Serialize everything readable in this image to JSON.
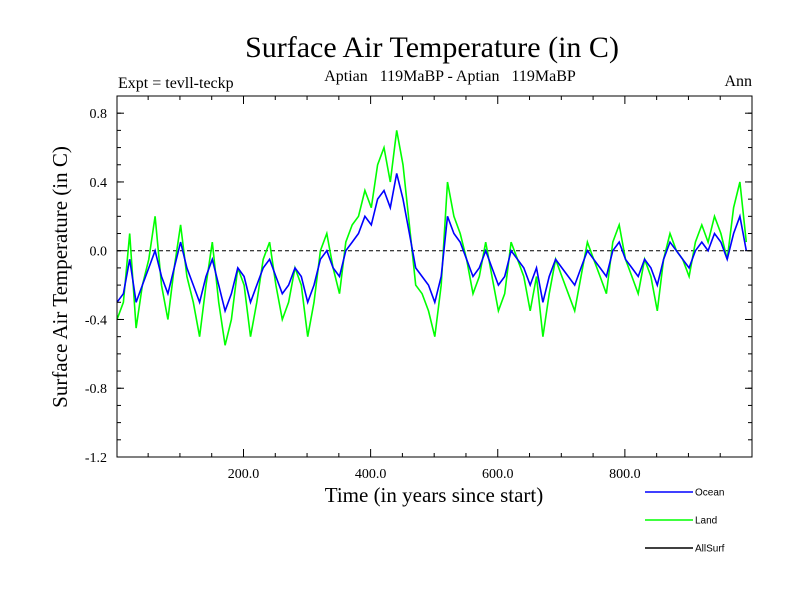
{
  "chart_data": {
    "type": "line",
    "title": "Surface Air Temperature (in C)",
    "subtitle_left": "Expt = tevll-teckp",
    "subtitle_center": "Aptian   119MaBP - Aptian   119MaBP",
    "subtitle_right": "Ann",
    "xlabel": "Time (in years since start)",
    "ylabel": "Surface Air Temperature (in C)",
    "xlim": [
      1,
      1000
    ],
    "ylim": [
      -1.2,
      0.9
    ],
    "xticks": [
      200,
      400,
      600,
      800
    ],
    "xtick_labels": [
      "200.0",
      "400.0",
      "600.0",
      "800.0"
    ],
    "yticks": [
      -1.2,
      -0.8,
      -0.4,
      0.0,
      0.4,
      0.8
    ],
    "ytick_labels": [
      "-1.2",
      "-0.8",
      "-0.4",
      "0.0",
      "0.4",
      "0.8"
    ],
    "zero_line": true,
    "legend_position": "bottom-right, outside plot",
    "series": [
      {
        "name": "Ocean",
        "color": "#0000ff",
        "x_start": 1,
        "x_step": 10,
        "values": [
          -0.3,
          -0.25,
          -0.05,
          -0.3,
          -0.2,
          -0.1,
          0.0,
          -0.15,
          -0.25,
          -0.1,
          0.05,
          -0.1,
          -0.2,
          -0.3,
          -0.15,
          -0.05,
          -0.2,
          -0.35,
          -0.25,
          -0.1,
          -0.15,
          -0.3,
          -0.2,
          -0.1,
          -0.05,
          -0.15,
          -0.25,
          -0.2,
          -0.1,
          -0.15,
          -0.3,
          -0.2,
          -0.05,
          0.0,
          -0.1,
          -0.15,
          0.0,
          0.05,
          0.1,
          0.2,
          0.15,
          0.3,
          0.35,
          0.25,
          0.45,
          0.3,
          0.1,
          -0.1,
          -0.15,
          -0.2,
          -0.3,
          -0.15,
          0.2,
          0.1,
          0.05,
          -0.05,
          -0.15,
          -0.1,
          0.0,
          -0.1,
          -0.2,
          -0.15,
          0.0,
          -0.05,
          -0.1,
          -0.2,
          -0.1,
          -0.3,
          -0.15,
          -0.05,
          -0.1,
          -0.15,
          -0.2,
          -0.1,
          0.0,
          -0.05,
          -0.1,
          -0.15,
          0.0,
          0.05,
          -0.05,
          -0.1,
          -0.15,
          -0.05,
          -0.1,
          -0.2,
          -0.05,
          0.05,
          0.0,
          -0.05,
          -0.1,
          0.0,
          0.05,
          0.0,
          0.1,
          0.05,
          -0.05,
          0.1,
          0.2,
          0.0
        ]
      },
      {
        "name": "Land",
        "color": "#00ff00",
        "x_start": 1,
        "x_step": 10,
        "values": [
          -0.4,
          -0.3,
          0.1,
          -0.45,
          -0.2,
          -0.05,
          0.2,
          -0.2,
          -0.4,
          -0.1,
          0.15,
          -0.15,
          -0.3,
          -0.5,
          -0.2,
          0.05,
          -0.3,
          -0.55,
          -0.4,
          -0.1,
          -0.2,
          -0.5,
          -0.3,
          -0.05,
          0.05,
          -0.2,
          -0.4,
          -0.3,
          -0.1,
          -0.2,
          -0.5,
          -0.3,
          0.0,
          0.1,
          -0.1,
          -0.25,
          0.05,
          0.15,
          0.2,
          0.35,
          0.25,
          0.5,
          0.6,
          0.4,
          0.7,
          0.5,
          0.15,
          -0.2,
          -0.25,
          -0.35,
          -0.5,
          -0.2,
          0.4,
          0.2,
          0.1,
          -0.05,
          -0.25,
          -0.15,
          0.05,
          -0.15,
          -0.35,
          -0.25,
          0.05,
          -0.05,
          -0.15,
          -0.35,
          -0.15,
          -0.5,
          -0.25,
          -0.05,
          -0.15,
          -0.25,
          -0.35,
          -0.15,
          0.05,
          -0.05,
          -0.15,
          -0.25,
          0.05,
          0.15,
          -0.05,
          -0.15,
          -0.25,
          -0.05,
          -0.15,
          -0.35,
          -0.05,
          0.1,
          0.0,
          -0.05,
          -0.15,
          0.05,
          0.15,
          0.05,
          0.2,
          0.1,
          -0.05,
          0.25,
          0.4,
          0.05
        ]
      },
      {
        "name": "AllSurf",
        "color": "#000000",
        "x_start": 1,
        "x_step": 10,
        "values": []
      }
    ]
  }
}
